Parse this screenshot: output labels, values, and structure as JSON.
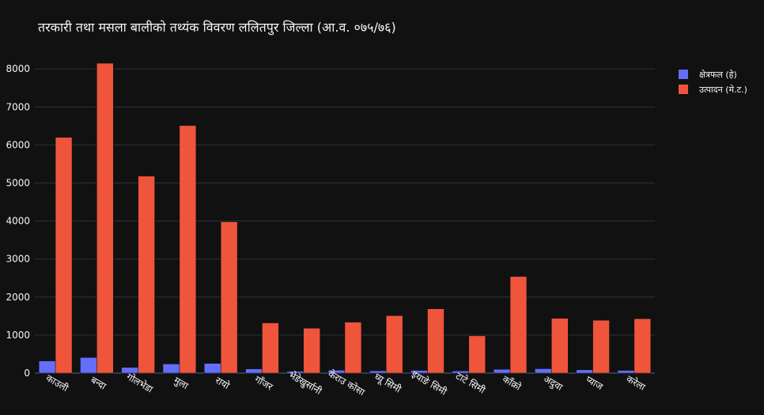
{
  "chart_data": {
    "type": "bar",
    "title": "तरकारी तथा मसला बालीको तथ्यंक विवरण ललितपुर जिल्ला (आ.व. ०७५/७६)",
    "xlabel": "",
    "ylabel": "",
    "ylim": [
      0,
      8400
    ],
    "y_ticks": [
      0,
      1000,
      2000,
      3000,
      4000,
      5000,
      6000,
      7000,
      8000
    ],
    "grid": true,
    "legend_position": "top-right",
    "categories": [
      "काउली",
      "बन्दा",
      "गोलभेडा",
      "मुला",
      "रायो",
      "गाँजर",
      "भेडेखुर्सानी",
      "केराउ कोसा",
      "घ्यू सिमी",
      "इयाङे सिमी",
      "टाटे सिमी",
      "काँक्रो",
      "अदुवा",
      "प्याज",
      "करेला"
    ],
    "series": [
      {
        "name": "क्षेत्रफल (हे)",
        "color": "#636efa",
        "values": [
          320,
          410,
          150,
          240,
          255,
          110,
          45,
          75,
          60,
          70,
          55,
          100,
          115,
          85,
          70
        ]
      },
      {
        "name": "उत्पादन (मे.ट.)",
        "color": "#ef553b",
        "values": [
          6200,
          8150,
          5180,
          6510,
          3980,
          1320,
          1180,
          1340,
          1510,
          1690,
          980,
          2540,
          1440,
          1390,
          1430
        ]
      }
    ]
  }
}
